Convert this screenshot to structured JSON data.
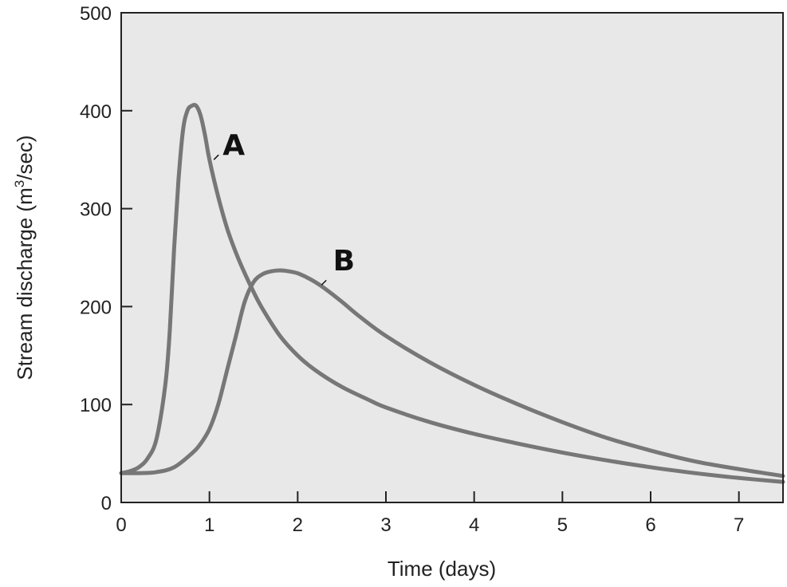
{
  "chart_data": {
    "type": "line",
    "title": "",
    "xlabel": "Time (days)",
    "ylabel_main": "Stream discharge (m",
    "ylabel_sup": "3",
    "ylabel_end": "/sec)",
    "xlim": [
      0,
      7.5
    ],
    "ylim": [
      0,
      500
    ],
    "x_ticks": [
      0,
      1,
      2,
      3,
      4,
      5,
      6,
      7
    ],
    "y_ticks": [
      0,
      100,
      200,
      300,
      400,
      500
    ],
    "x_tick_labels": [
      "0",
      "1",
      "2",
      "3",
      "4",
      "5",
      "6",
      "7"
    ],
    "y_tick_labels": [
      "0",
      "100",
      "200",
      "300",
      "400",
      "500"
    ],
    "grid": false,
    "plot_background": "#e8e8e8",
    "line_color": "#777777",
    "series": [
      {
        "name": "A",
        "x": [
          0,
          0.1,
          0.2,
          0.3,
          0.4,
          0.5,
          0.55,
          0.6,
          0.65,
          0.7,
          0.75,
          0.8,
          0.85,
          0.9,
          0.95,
          1.0,
          1.1,
          1.2,
          1.3,
          1.4,
          1.5,
          1.6,
          1.8,
          2.0,
          2.2,
          2.5,
          2.8,
          3.0,
          3.5,
          4.0,
          4.5,
          5.0,
          5.5,
          6.0,
          6.5,
          7.0,
          7.5
        ],
        "y": [
          30,
          32,
          36,
          45,
          65,
          120,
          175,
          260,
          330,
          380,
          400,
          405,
          405,
          395,
          375,
          350,
          312,
          280,
          255,
          234,
          215,
          198,
          170,
          150,
          135,
          118,
          105,
          97,
          82,
          70,
          60,
          51,
          43,
          36,
          30,
          25,
          21
        ],
        "label_at": [
          1.05,
          350
        ],
        "label_pos": [
          1.15,
          355
        ]
      },
      {
        "name": "B",
        "x": [
          0,
          0.2,
          0.4,
          0.6,
          0.8,
          0.9,
          1.0,
          1.1,
          1.2,
          1.3,
          1.4,
          1.5,
          1.6,
          1.7,
          1.8,
          1.9,
          2.0,
          2.1,
          2.2,
          2.3,
          2.5,
          2.7,
          3.0,
          3.5,
          4.0,
          4.5,
          5.0,
          5.5,
          6.0,
          6.5,
          7.0,
          7.5
        ],
        "y": [
          30,
          30,
          31,
          36,
          50,
          60,
          75,
          100,
          135,
          170,
          205,
          225,
          233,
          236,
          237,
          236,
          234,
          230,
          225,
          219,
          205,
          190,
          170,
          143,
          120,
          100,
          82,
          66,
          53,
          42,
          34,
          27
        ],
        "label_at": [
          2.27,
          222
        ],
        "label_pos": [
          2.4,
          237
        ]
      }
    ]
  }
}
